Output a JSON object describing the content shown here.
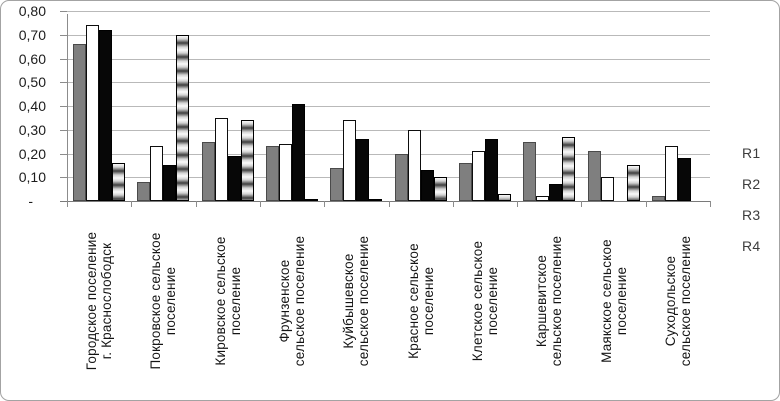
{
  "figure": {
    "background": "#ffffff",
    "frame_border_color": "#a3a3a3",
    "gridline_color": "#b9b9b9",
    "axis_color": "#8c8c8c",
    "series_colors": {
      "R1": "#7f7f7f",
      "R2": "#ffffff",
      "R3": "#000000",
      "R4": "gradient-texture-grayscale"
    }
  },
  "legend": {
    "items": [
      "R1",
      "R2",
      "R3",
      "R4"
    ]
  },
  "y_axis": {
    "ticks": [
      {
        "value": 0.8,
        "label": "0,80"
      },
      {
        "value": 0.7,
        "label": "0,70"
      },
      {
        "value": 0.6,
        "label": "0,60"
      },
      {
        "value": 0.5,
        "label": "0,50"
      },
      {
        "value": 0.4,
        "label": "0,40"
      },
      {
        "value": 0.3,
        "label": "0,30"
      },
      {
        "value": 0.2,
        "label": "0,20"
      },
      {
        "value": 0.1,
        "label": "0,10"
      },
      {
        "value": 0.0,
        "label": "-",
        "accounting_zero": true
      }
    ]
  },
  "chart_data": {
    "type": "bar",
    "title": "",
    "xlabel": "",
    "ylabel": "",
    "ylim": [
      0,
      0.8
    ],
    "ytick_step": 0.1,
    "grid": true,
    "legend_position": "right",
    "decimal_separator": ",",
    "categories": [
      "Городское поселение\nг. Краснослободск",
      "Покровское сельское\nпоселение",
      "Кировское сельское\nпоселение",
      "Фрунзенское\nсельское поселение",
      "Куйбышевское\nсельское поселение",
      "Красное сельское\nпоселение",
      "Клетское сельское\nпоселение",
      "Каршевитское\nсельское поселение",
      "Маякское сельское\nпоселение",
      "Суходольское\nсельское поселение"
    ],
    "series": [
      {
        "name": "R1",
        "style": "solid-gray",
        "values": [
          0.66,
          0.08,
          0.25,
          0.23,
          0.14,
          0.2,
          0.16,
          0.25,
          0.21,
          0.02
        ]
      },
      {
        "name": "R2",
        "style": "white-outlined",
        "values": [
          0.74,
          0.23,
          0.35,
          0.24,
          0.34,
          0.3,
          0.21,
          0.02,
          0.1,
          0.23
        ]
      },
      {
        "name": "R3",
        "style": "solid-black",
        "values": [
          0.72,
          0.15,
          0.19,
          0.41,
          0.26,
          0.13,
          0.26,
          0.07,
          0.0,
          0.18
        ]
      },
      {
        "name": "R4",
        "style": "gradient-texture",
        "values": [
          0.16,
          0.7,
          0.34,
          0.01,
          0.01,
          0.1,
          0.03,
          0.27,
          0.15,
          0.0
        ]
      }
    ]
  }
}
